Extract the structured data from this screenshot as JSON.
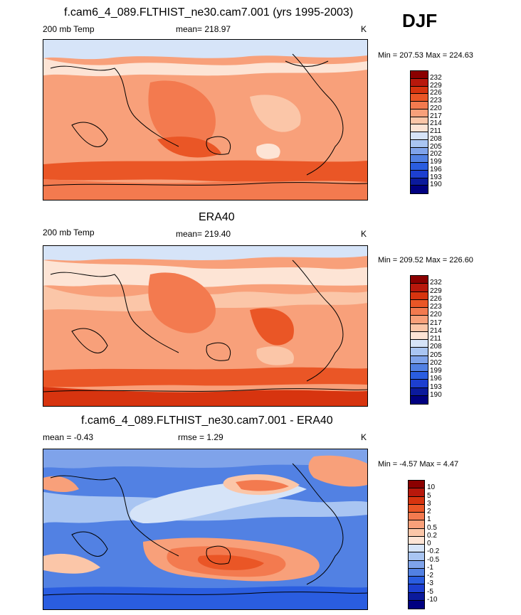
{
  "season": "DJF",
  "panels": [
    {
      "title": "f.cam6_4_089.FLTHIST_ne30.cam7.001 (yrs 1995-2003)",
      "left_label": "200 mb Temp",
      "center_label": "mean= 218.97",
      "right_label": "K",
      "minmax": "Min = 207.53 Max = 224.63",
      "levels": [
        "232",
        "229",
        "226",
        "223",
        "220",
        "217",
        "214",
        "211",
        "208",
        "205",
        "202",
        "199",
        "196",
        "193",
        "190"
      ]
    },
    {
      "title": "ERA40",
      "left_label": "200 mb Temp",
      "center_label": "mean= 219.40",
      "right_label": "K",
      "minmax": "Min = 209.52 Max = 226.60",
      "levels": [
        "232",
        "229",
        "226",
        "223",
        "220",
        "217",
        "214",
        "211",
        "208",
        "205",
        "202",
        "199",
        "196",
        "193",
        "190"
      ]
    },
    {
      "title": "f.cam6_4_089.FLTHIST_ne30.cam7.001 - ERA40",
      "left_label": "mean =  -0.43",
      "center_label": "rmse =   1.29",
      "right_label": "K",
      "minmax": "Min =  -4.57 Max =   4.47",
      "levels": [
        "10",
        "5",
        "3",
        "2",
        "1",
        "0.5",
        "0.2",
        "0",
        "-0.2",
        "-0.5",
        "-1",
        "-2",
        "-3",
        "-5",
        "-10"
      ]
    }
  ],
  "colors": {
    "abs_scale": [
      "#8b0000",
      "#b8180c",
      "#d7340f",
      "#ea5626",
      "#f37a4f",
      "#f8a07a",
      "#fbc6a8",
      "#fde4d5",
      "#ffffff",
      "#d6e4f8",
      "#a9c5f2",
      "#7fa3ea",
      "#5281e3",
      "#2a5de0",
      "#1d3fd0",
      "#0b1a9c",
      "#000080"
    ],
    "diff_scale": [
      "#8b0000",
      "#b8180c",
      "#d7340f",
      "#ea5626",
      "#f37a4f",
      "#f8a07a",
      "#fbc6a8",
      "#fde4d5",
      "#ffffff",
      "#d6e4f8",
      "#a9c5f2",
      "#7fa3ea",
      "#5281e3",
      "#2a5de0",
      "#1d3fd0",
      "#0b1a9c",
      "#000080"
    ]
  }
}
